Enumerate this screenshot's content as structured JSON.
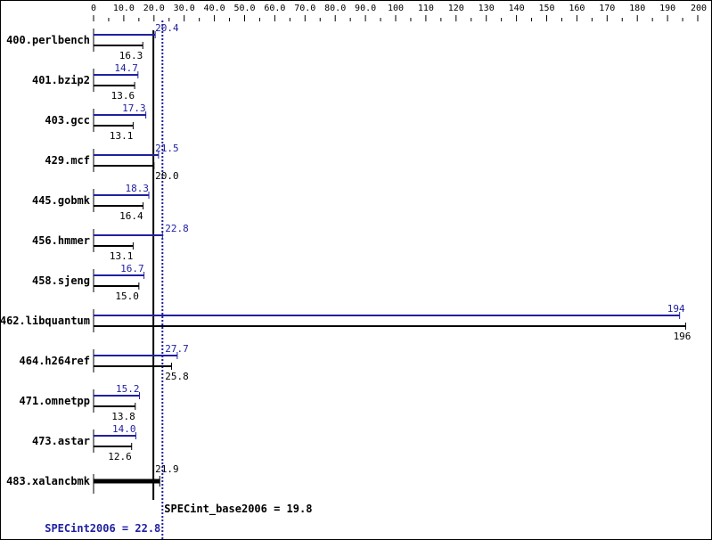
{
  "chart_data": {
    "type": "bar",
    "orientation": "horizontal",
    "xlim": [
      0,
      200
    ],
    "tick_labels": [
      "0",
      "10.0",
      "20.0",
      "30.0",
      "40.0",
      "50.0",
      "60.0",
      "70.0",
      "80.0",
      "90.0",
      "100",
      "110",
      "120",
      "130",
      "140",
      "150",
      "160",
      "170",
      "180",
      "190",
      "200"
    ],
    "tick_values": [
      0,
      10,
      20,
      30,
      40,
      50,
      60,
      70,
      80,
      90,
      100,
      110,
      120,
      130,
      140,
      150,
      160,
      170,
      180,
      190,
      200
    ],
    "categories": [
      "400.perlbench",
      "401.bzip2",
      "403.gcc",
      "429.mcf",
      "445.gobmk",
      "456.hmmer",
      "458.sjeng",
      "462.libquantum",
      "464.h264ref",
      "471.omnetpp",
      "473.astar",
      "483.xalancbmk"
    ],
    "series": [
      {
        "key": "peak",
        "color": "#2020a0",
        "values": [
          20.4,
          14.7,
          17.3,
          21.5,
          18.3,
          22.8,
          16.7,
          194,
          27.7,
          15.2,
          14.0,
          null
        ],
        "labels": [
          "20.4",
          "14.7",
          "17.3",
          "21.5",
          "18.3",
          "22.8",
          "16.7",
          "194",
          "27.7",
          "15.2",
          "14.0",
          ""
        ]
      },
      {
        "key": "base",
        "color": "#000000",
        "values": [
          16.3,
          13.6,
          13.1,
          20.0,
          16.4,
          13.1,
          15.0,
          196,
          25.8,
          13.8,
          12.6,
          21.9
        ],
        "labels": [
          "16.3",
          "13.6",
          "13.1",
          "20.0",
          "16.4",
          "13.1",
          "15.0",
          "196",
          "25.8",
          "13.8",
          "12.6",
          "21.9"
        ]
      }
    ],
    "reference_lines": [
      {
        "key": "base",
        "value": 19.8,
        "label": "SPECint_base2006 = 19.8",
        "color": "#000000",
        "style": "solid"
      },
      {
        "key": "peak",
        "value": 22.8,
        "label": "SPECint2006 = 22.8",
        "color": "#2020a0",
        "style": "dotted"
      }
    ]
  }
}
